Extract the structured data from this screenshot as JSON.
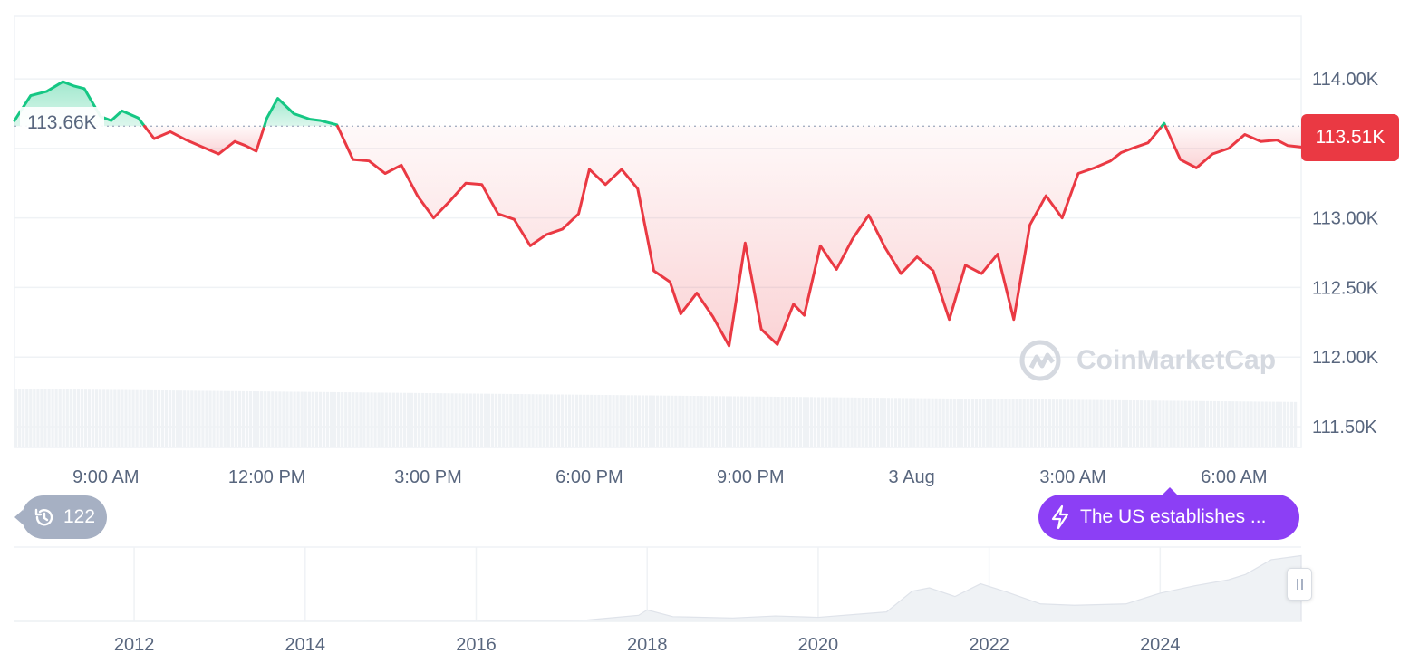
{
  "chart_data": {
    "type": "line",
    "reference_price": 113.66,
    "reference_label": "113.66K",
    "current_label": "113.51K",
    "y_axis": {
      "ylim": [
        111.35,
        114.45
      ],
      "ticks": [
        114.0,
        113.5,
        113.0,
        112.5,
        112.0,
        111.5
      ],
      "tick_labels": [
        "114.00K",
        "113.50K",
        "113.00K",
        "112.50K",
        "112.00K",
        "111.50K"
      ]
    },
    "x_axis": {
      "xlim": [
        7.3,
        31.25
      ],
      "ticks": [
        9,
        12,
        15,
        18,
        21,
        24,
        27,
        30
      ],
      "tick_labels": [
        "9:00 AM",
        "12:00 PM",
        "3:00 PM",
        "6:00 PM",
        "9:00 PM",
        "3 Aug",
        "3:00 AM",
        "6:00 AM"
      ]
    },
    "series": [
      {
        "x": [
          7.3,
          7.6,
          7.9,
          8.2,
          8.4,
          8.6,
          8.9,
          9.1,
          9.3,
          9.6,
          9.9,
          10.2,
          10.5,
          10.8,
          11.1,
          11.4,
          11.6,
          11.8,
          12.0,
          12.2,
          12.5,
          12.8,
          13.0,
          13.3,
          13.6,
          13.9,
          14.2,
          14.5,
          14.8,
          15.1,
          15.4,
          15.7,
          16.0,
          16.3,
          16.6,
          16.9,
          17.2,
          17.5,
          17.8,
          18.0,
          18.3,
          18.6,
          18.9,
          19.2,
          19.5,
          19.7,
          20.0,
          20.3,
          20.6,
          20.9,
          21.2,
          21.5,
          21.8,
          22.0,
          22.3,
          22.6,
          22.9,
          23.2,
          23.5,
          23.8,
          24.1,
          24.4,
          24.7,
          25.0,
          25.3,
          25.6,
          25.9,
          26.2,
          26.5,
          26.8,
          27.1,
          27.4,
          27.7,
          27.9,
          28.1,
          28.4,
          28.7,
          29.0,
          29.3,
          29.6,
          29.9,
          30.2,
          30.5,
          30.8,
          31.0,
          31.25
        ],
        "values": [
          113.7,
          113.88,
          113.91,
          113.98,
          113.95,
          113.93,
          113.73,
          113.7,
          113.77,
          113.72,
          113.57,
          113.62,
          113.56,
          113.51,
          113.46,
          113.55,
          113.52,
          113.48,
          113.72,
          113.86,
          113.75,
          113.71,
          113.7,
          113.67,
          113.42,
          113.41,
          113.32,
          113.38,
          113.16,
          113.0,
          113.12,
          113.25,
          113.24,
          113.03,
          112.99,
          112.8,
          112.88,
          112.92,
          113.03,
          113.35,
          113.24,
          113.35,
          113.21,
          112.62,
          112.54,
          112.31,
          112.46,
          112.29,
          112.08,
          112.82,
          112.2,
          112.09,
          112.38,
          112.3,
          112.8,
          112.63,
          112.85,
          113.02,
          112.79,
          112.6,
          112.72,
          112.62,
          112.27,
          112.66,
          112.6,
          112.74,
          112.27,
          112.95,
          113.16,
          113.0,
          113.32,
          113.36,
          113.41,
          113.47,
          113.5,
          113.54,
          113.68,
          113.42,
          113.36,
          113.46,
          113.5,
          113.6,
          113.55,
          113.56,
          113.52,
          113.51
        ]
      }
    ],
    "volume": {
      "start_value": 0.98,
      "end_value": 0.76
    },
    "overview": {
      "x_ticks": [
        2012,
        2014,
        2016,
        2018,
        2020,
        2022,
        2024
      ],
      "tick_labels": [
        "2012",
        "2014",
        "2016",
        "2018",
        "2020",
        "2022",
        "2024"
      ],
      "xlim": [
        2010.6,
        2025.65
      ],
      "x": [
        2010.6,
        2013.0,
        2016.0,
        2017.3,
        2017.9,
        2018.0,
        2018.3,
        2019.0,
        2019.5,
        2020.0,
        2020.8,
        2021.1,
        2021.3,
        2021.6,
        2021.9,
        2022.2,
        2022.6,
        2023.0,
        2023.6,
        2024.0,
        2024.4,
        2024.8,
        2025.0,
        2025.3,
        2025.65
      ],
      "values": [
        0.0,
        0.001,
        0.004,
        0.02,
        0.09,
        0.17,
        0.07,
        0.05,
        0.08,
        0.06,
        0.14,
        0.43,
        0.52,
        0.35,
        0.58,
        0.42,
        0.28,
        0.22,
        0.28,
        0.4,
        0.55,
        0.6,
        0.72,
        0.9,
        0.98
      ]
    },
    "grid": true,
    "colors": {
      "up": "#16c784",
      "down": "#ea3943",
      "grid": "#eff2f5",
      "axis_text": "#58667e",
      "volume": "#eff2f5",
      "overview_fill": "#eff2f5",
      "overview_line": "#dfe3ea",
      "badge": "#ea3943",
      "news": "#8c3ff5",
      "history": "#a6b0c3"
    }
  },
  "history_count": "122",
  "history_icon": "history-icon",
  "news_text": "The US establishes ...",
  "news_icon": "lightning-icon",
  "watermark": {
    "text": "CoinMarketCap",
    "icon": "coinmarketcap-logo-icon"
  }
}
